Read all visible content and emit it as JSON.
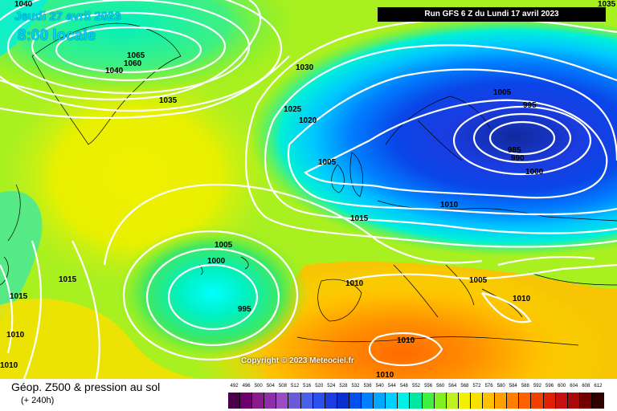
{
  "header": {
    "valid_date": "Jeudi 27 avril 2023",
    "valid_time": "8:00 locale",
    "run_info": "Run GFS 6 Z du Lundi 17 avril 2023"
  },
  "map": {
    "copyright": "Copyright © 2023 Meteociel.fr",
    "isobar_labels": [
      "1040",
      "1065",
      "1060",
      "1040",
      "1035",
      "1030",
      "1025",
      "1020",
      "1005",
      "995",
      "985",
      "990",
      "1000",
      "1005",
      "1010",
      "1015",
      "1005",
      "1000",
      "995",
      "1015",
      "1015",
      "1010",
      "1010",
      "1005",
      "1010",
      "1010",
      "1010",
      "1010",
      "1035"
    ]
  },
  "legend": {
    "title": "Géop. Z500 & pression au sol",
    "subtitle": "(+ 240h)",
    "scale_values": [
      "492",
      "496",
      "500",
      "504",
      "508",
      "512",
      "516",
      "520",
      "524",
      "528",
      "532",
      "536",
      "540",
      "544",
      "548",
      "552",
      "556",
      "560",
      "564",
      "568",
      "572",
      "576",
      "580",
      "584",
      "588",
      "592",
      "596",
      "600",
      "604",
      "608",
      "612"
    ],
    "scale_colors": [
      "#4a0048",
      "#6c006c",
      "#8a1a8a",
      "#8e2ea8",
      "#9a4cc4",
      "#6a5ad8",
      "#4a60e8",
      "#2a50f0",
      "#1a3ce0",
      "#0a30d0",
      "#0050f0",
      "#0080ff",
      "#00a8ff",
      "#00d0ff",
      "#00f0e8",
      "#00e8a0",
      "#40f040",
      "#80f020",
      "#c0f020",
      "#f0f000",
      "#f8e000",
      "#ffc000",
      "#ffa000",
      "#ff8000",
      "#ff6000",
      "#f04000",
      "#e02000",
      "#c81010",
      "#a80808",
      "#700000",
      "#300000"
    ]
  }
}
